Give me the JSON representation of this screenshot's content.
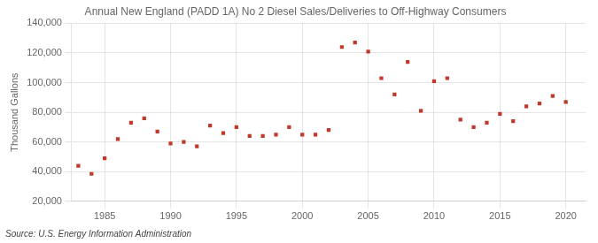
{
  "chart_data": {
    "type": "scatter",
    "title": "Annual New England (PADD 1A) No 2 Diesel Sales/Deliveries to Off-Highway Consumers",
    "ylabel": "Thousand Gallons",
    "annotation": "Source: U.S. Energy Information Administration",
    "x": [
      1983,
      1984,
      1985,
      1986,
      1987,
      1988,
      1989,
      1990,
      1991,
      1992,
      1993,
      1994,
      1995,
      1996,
      1997,
      1998,
      1999,
      2000,
      2001,
      2002,
      2003,
      2004,
      2005,
      2006,
      2007,
      2008,
      2009,
      2010,
      2011,
      2012,
      2013,
      2014,
      2015,
      2016,
      2017,
      2018,
      2019,
      2020
    ],
    "values": [
      44000,
      38500,
      49000,
      62000,
      73000,
      76000,
      67000,
      59000,
      60000,
      57000,
      71000,
      66000,
      70000,
      64000,
      64000,
      65000,
      70000,
      65000,
      65000,
      68000,
      124000,
      127000,
      121000,
      103000,
      92000,
      114000,
      81000,
      101000,
      103000,
      75000,
      70000,
      73000,
      79000,
      74000,
      84000,
      86000,
      91000,
      87000
    ],
    "color": "#c0392b",
    "marker": "square",
    "xlim": [
      1982.5,
      2021.5
    ],
    "xticks": [
      1985,
      1990,
      1995,
      2000,
      2005,
      2010,
      2015,
      2020
    ],
    "ylim": [
      20000,
      140000
    ],
    "yticks": [
      {
        "value": 20000,
        "label": "20,000"
      },
      {
        "value": 40000,
        "label": "40,000"
      },
      {
        "value": 60000,
        "label": "60,000"
      },
      {
        "value": 80000,
        "label": "80,000"
      },
      {
        "value": 100000,
        "label": "100,000"
      },
      {
        "value": 120000,
        "label": "120,000"
      },
      {
        "value": 140000,
        "label": "140,000"
      }
    ],
    "grid": true
  }
}
